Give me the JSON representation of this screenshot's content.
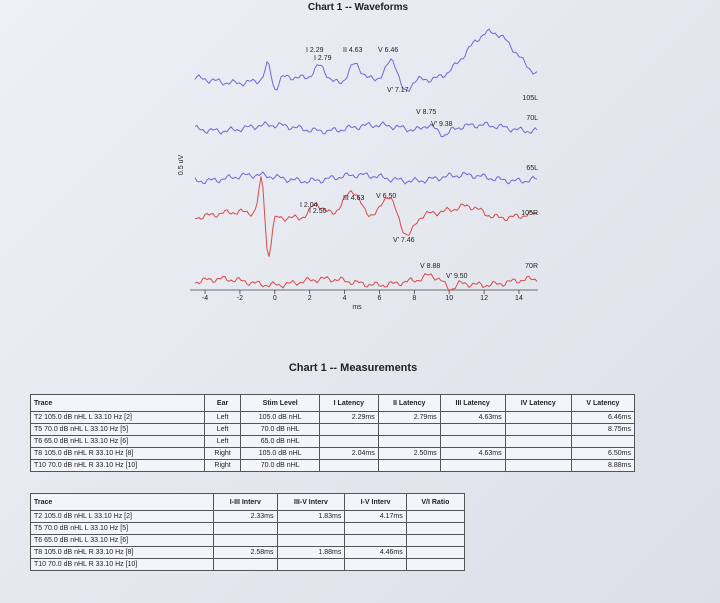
{
  "chart": {
    "title": "Chart 1 -- Waveforms",
    "y_label": "0.5 uV",
    "x_label": "ms",
    "xlim": [
      -5,
      15
    ],
    "xticks": [
      -4,
      -2,
      0,
      2,
      4,
      6,
      8,
      10,
      12,
      14
    ],
    "traces": [
      {
        "label": "105L",
        "color": "#6a6ad8",
        "peaks": [
          "I 2.29",
          "I 2.79",
          "II 4.63",
          "V 6.46",
          "V' 7.17"
        ]
      },
      {
        "label": "70L",
        "color": "#6a6ad8",
        "peaks": [
          "V 8.75",
          "V' 9.38"
        ]
      },
      {
        "label": "65L",
        "color": "#6a6ad8",
        "peaks": []
      },
      {
        "label": "105R",
        "color": "#d84a4a",
        "peaks": [
          "I 2.04",
          "I 2.50",
          "III 4.63",
          "V 6.50",
          "V' 7.46"
        ]
      },
      {
        "label": "70R",
        "color": "#d84a4a",
        "peaks": [
          "V 8.88",
          "V' 9.50"
        ]
      }
    ]
  },
  "measurements": {
    "title": "Chart 1 -- Measurements",
    "latency_table": {
      "headers": [
        "Trace",
        "Ear",
        "Stim Level",
        "I Latency",
        "II Latency",
        "III Latency",
        "IV Latency",
        "V Latency"
      ],
      "rows": [
        [
          "T2 105.0 dB nHL L 33.10 Hz [2]",
          "Left",
          "105.0 dB nHL",
          "2.29ms",
          "2.79ms",
          "4.63ms",
          null,
          "6.46ms"
        ],
        [
          "T5 70.0 dB nHL L 33.10 Hz [5]",
          "Left",
          "70.0 dB nHL",
          null,
          null,
          null,
          null,
          "8.75ms"
        ],
        [
          "T6 65.0 dB nHL L 33.10 Hz [6]",
          "Left",
          "65.0 dB nHL",
          null,
          null,
          null,
          null,
          null
        ],
        [
          "T8 105.0 dB nHL R 33.10 Hz [8]",
          "Right",
          "105.0 dB nHL",
          "2.04ms",
          "2.50ms",
          "4.63ms",
          null,
          "6.50ms"
        ],
        [
          "T10 70.0 dB nHL R 33.10 Hz [10]",
          "Right",
          "70.0 dB nHL",
          null,
          null,
          null,
          null,
          "8.88ms"
        ]
      ]
    },
    "interval_table": {
      "headers": [
        "Trace",
        "I-III Interv",
        "III-V Interv",
        "I-V Interv",
        "V/I Ratio"
      ],
      "rows": [
        [
          "T2 105.0 dB nHL L 33.10 Hz [2]",
          "2.33ms",
          "1.83ms",
          "4.17ms",
          null
        ],
        [
          "T5 70.0 dB nHL L 33.10 Hz [5]",
          null,
          null,
          null,
          null
        ],
        [
          "T6 65.0 dB nHL L 33.10 Hz [6]",
          null,
          null,
          null,
          null
        ],
        [
          "T8 105.0 dB nHL R 33.10 Hz [8]",
          "2.58ms",
          "1.88ms",
          "4.46ms",
          null
        ],
        [
          "T10 70.0 dB nHL R 33.10 Hz [10]",
          null,
          null,
          null,
          null
        ]
      ]
    }
  }
}
